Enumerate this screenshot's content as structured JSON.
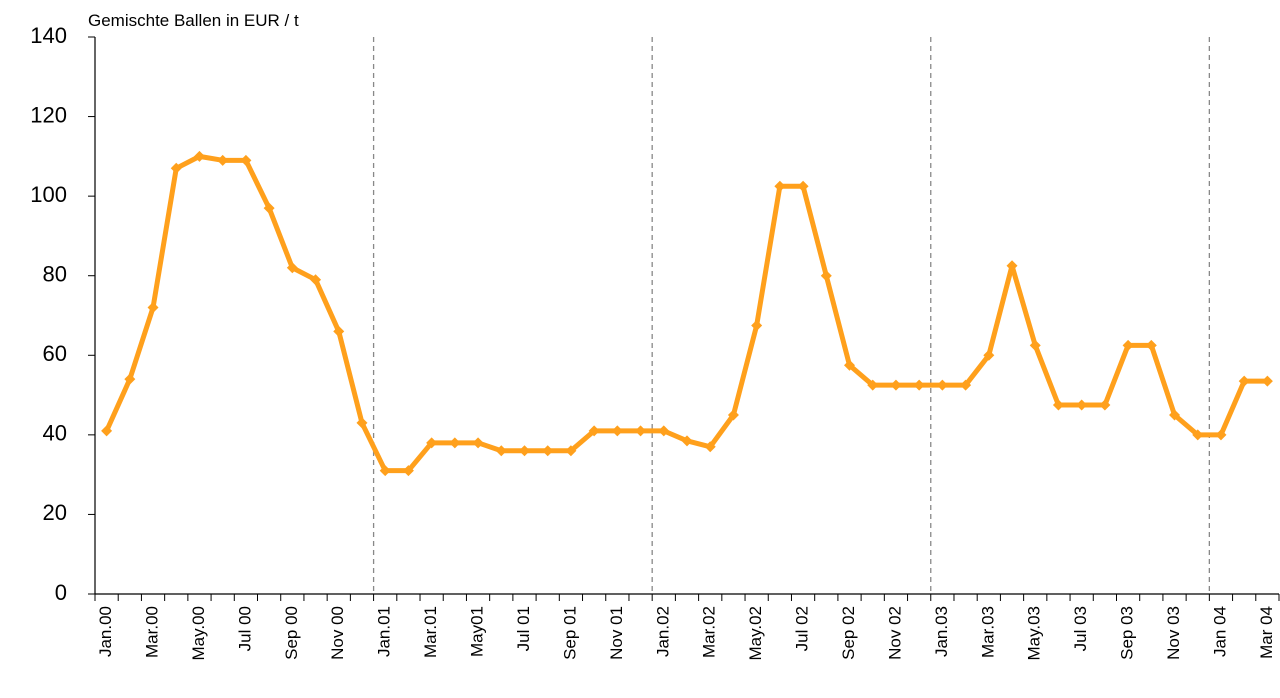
{
  "chart_data": {
    "type": "line",
    "title": "Gemischte Ballen in EUR / t",
    "categories": [
      "Jan.00",
      null,
      "Mar.00",
      null,
      "May.00",
      null,
      "Jul 00",
      null,
      "Sep 00",
      null,
      "Nov 00",
      null,
      "Jan.01",
      null,
      "Mar.01",
      null,
      "May01",
      null,
      "Jul 01",
      null,
      "Sep 01",
      null,
      "Nov 01",
      null,
      "Jan.02",
      null,
      "Mar.02",
      null,
      "May.02",
      null,
      "Jul 02",
      null,
      "Sep 02",
      null,
      "Nov 02",
      null,
      "Jan.03",
      null,
      "Mar.03",
      null,
      "May.03",
      null,
      "Jul 03",
      null,
      "Sep 03",
      null,
      "Nov 03",
      null,
      "Jan 04",
      null,
      "Mar 04"
    ],
    "values": [
      41,
      54,
      72,
      107,
      110,
      109,
      109,
      97,
      82,
      79,
      66,
      43,
      31,
      31,
      38,
      38,
      38,
      36,
      36,
      36,
      36,
      41,
      41,
      41,
      41,
      38.5,
      37,
      45,
      67.5,
      102.5,
      102.5,
      80,
      57.5,
      52.5,
      52.5,
      52.5,
      52.5,
      52.5,
      60,
      82.5,
      62.5,
      47.5,
      47.5,
      47.5,
      62.5,
      62.5,
      45,
      40,
      40,
      53.5,
      53.5
    ],
    "color": "#ffa01c",
    "ylim": [
      0,
      140
    ],
    "yticks": [
      0,
      20,
      40,
      60,
      80,
      100,
      120,
      140
    ],
    "grid": false
  }
}
